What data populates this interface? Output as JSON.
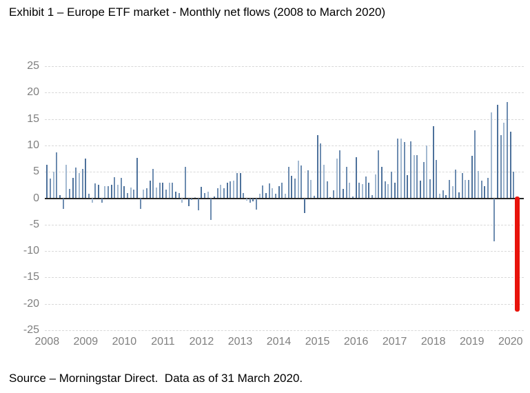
{
  "title": "Exhibit 1 – Europe ETF market - Monthly net flows (2008 to March 2020)",
  "source_note": "Source – Morningstar Direct.  Data as of 31 March 2020.",
  "colors": {
    "bar_dark": "#4d719b",
    "bar_medium": "#6d8cb0",
    "bar_light": "#a3b9d1",
    "highlight_red": "#e8140c",
    "axis_line": "#262626",
    "gridline": "#d8d8d8",
    "tick_label": "#7f7f7f",
    "text": "#000000"
  },
  "chart_data": {
    "type": "bar",
    "title": "Europe ETF market - Monthly net flows (2008 to March 2020)",
    "xlabel": "",
    "ylabel": "",
    "ylim": [
      -25,
      25
    ],
    "grid": "horizontal-dashed",
    "y_axis": {
      "ticks": [
        25,
        20,
        15,
        10,
        5,
        0,
        -5,
        -10,
        -15,
        -20,
        -25
      ]
    },
    "x_axis": {
      "tick_labels": [
        "2008",
        "2009",
        "2010",
        "2011",
        "2012",
        "2013",
        "2014",
        "2015",
        "2016",
        "2017",
        "2018",
        "2019",
        "2020"
      ]
    },
    "start_month": "2008-01",
    "end_month": "2020-03",
    "series_name": "Monthly net flows",
    "monthly_flows": [
      {
        "year": 2008,
        "values": [
          6.3,
          3.7,
          5.0,
          8.7,
          0.6,
          -2.0,
          6.3,
          1.7,
          3.9,
          5.8,
          4.7,
          5.6
        ]
      },
      {
        "year": 2009,
        "values": [
          7.5,
          0.8,
          -0.8,
          2.8,
          2.6,
          -0.9,
          2.3,
          2.3,
          2.6,
          4.0,
          2.6,
          3.9
        ]
      },
      {
        "year": 2010,
        "values": [
          2.3,
          1.0,
          2.0,
          1.6,
          7.6,
          -2.0,
          1.6,
          1.9,
          3.3,
          5.5,
          2.0,
          2.9
        ]
      },
      {
        "year": 2011,
        "values": [
          2.9,
          1.6,
          2.9,
          3.0,
          1.3,
          1.0,
          -0.8,
          6.0,
          -1.5,
          -0.3,
          0.2,
          -2.3
        ]
      },
      {
        "year": 2012,
        "values": [
          2.1,
          1.0,
          1.3,
          -4.1,
          0.3,
          1.9,
          2.6,
          1.9,
          3.0,
          3.2,
          3.3,
          4.8
        ]
      },
      {
        "year": 2013,
        "values": [
          4.8,
          1.0,
          -0.5,
          -0.8,
          -0.6,
          -2.2,
          0.8,
          2.4,
          1.0,
          2.8,
          1.9,
          0.8
        ]
      },
      {
        "year": 2014,
        "values": [
          2.3,
          2.9,
          0.8,
          6.0,
          4.2,
          3.7,
          7.1,
          6.2,
          -2.8,
          5.3,
          3.5,
          0.4
        ]
      },
      {
        "year": 2015,
        "values": [
          11.9,
          10.4,
          6.3,
          3.2,
          0.2,
          1.5,
          7.5,
          9.1,
          1.7,
          5.9,
          3.0,
          0.3
        ]
      },
      {
        "year": 2016,
        "values": [
          7.8,
          2.9,
          2.7,
          4.1,
          2.9,
          0.6,
          4.5,
          9.1,
          6.0,
          3.2,
          2.7,
          5.0
        ]
      },
      {
        "year": 2017,
        "values": [
          3.0,
          11.3,
          11.3,
          10.6,
          4.4,
          10.8,
          8.2,
          8.1,
          3.3,
          6.8,
          10.0,
          3.6
        ]
      },
      {
        "year": 2018,
        "values": [
          13.7,
          7.3,
          0.9,
          1.5,
          0.6,
          3.4,
          2.3,
          5.4,
          1.1,
          4.8,
          3.5,
          3.4
        ]
      },
      {
        "year": 2019,
        "values": [
          8.0,
          12.8,
          5.2,
          3.3,
          2.3,
          3.9,
          16.3,
          -8.1,
          17.7,
          11.9,
          14.3,
          18.2
        ]
      },
      {
        "year": 2020,
        "values": [
          12.6,
          5.0,
          -21.5
        ]
      }
    ],
    "highlight": {
      "month": "2020-03",
      "value": -21.5,
      "note": "red bar"
    },
    "legend": "none"
  }
}
